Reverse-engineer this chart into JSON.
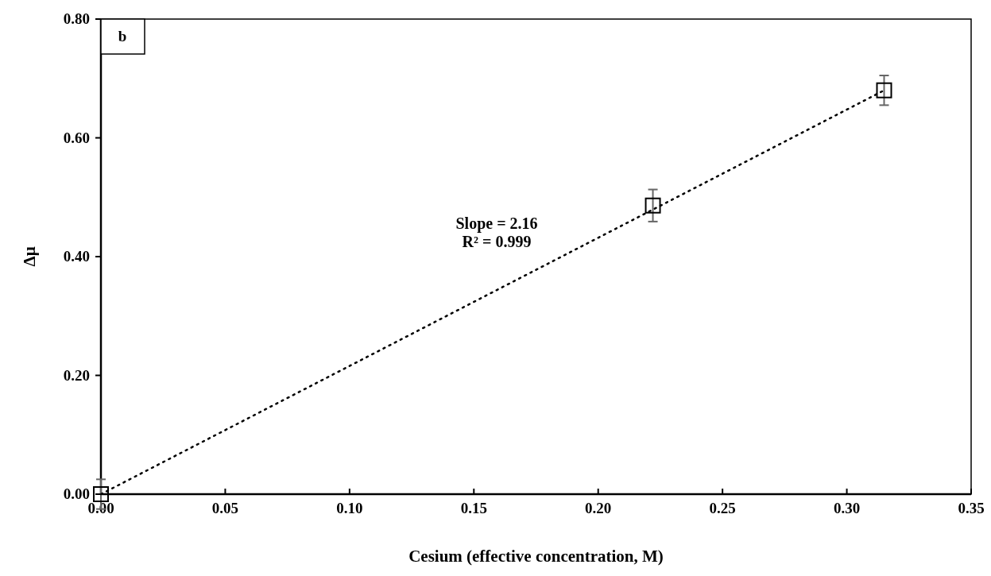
{
  "chart_data": {
    "type": "scatter",
    "xlabel": "Cesium (effective concentration, M)",
    "ylabel": "Δμ",
    "annotations": [
      "b",
      "Slope = 2.16",
      "R² =  0.999"
    ],
    "series": [
      {
        "color": "#000000",
        "x": [
          0.0,
          0.222,
          0.315
        ],
        "values": [
          0.0,
          0.486,
          0.68
        ],
        "errors": [
          0.025,
          0.027,
          0.025
        ],
        "marker": "square"
      },
      {
        "type": "line",
        "color": "#000000",
        "x": [
          0.0,
          0.315
        ],
        "values": [
          0.0,
          0.68
        ],
        "line_style": "dotted",
        "marker": "none"
      }
    ],
    "xlim": [
      0,
      0.35
    ],
    "ylim": [
      0,
      0.8
    ],
    "xticks": [
      {
        "value": 0,
        "label": "0.00"
      },
      {
        "value": 0.05,
        "label": "0.05"
      },
      {
        "value": 0.1,
        "label": "0.10"
      },
      {
        "value": 0.15,
        "label": "0.15"
      },
      {
        "value": 0.2,
        "label": "0.20"
      },
      {
        "value": 0.25,
        "label": "0.25"
      },
      {
        "value": 0.3,
        "label": "0.30"
      },
      {
        "value": 0.35,
        "label": "0.35"
      }
    ],
    "yticks": [
      {
        "value": 0,
        "label": "0.00"
      },
      {
        "value": 0.2,
        "label": "0.20"
      },
      {
        "value": 0.4,
        "label": "0.40"
      },
      {
        "value": 0.6,
        "label": "0.60"
      },
      {
        "value": 0.8,
        "label": "0.80"
      }
    ],
    "grid": false
  }
}
